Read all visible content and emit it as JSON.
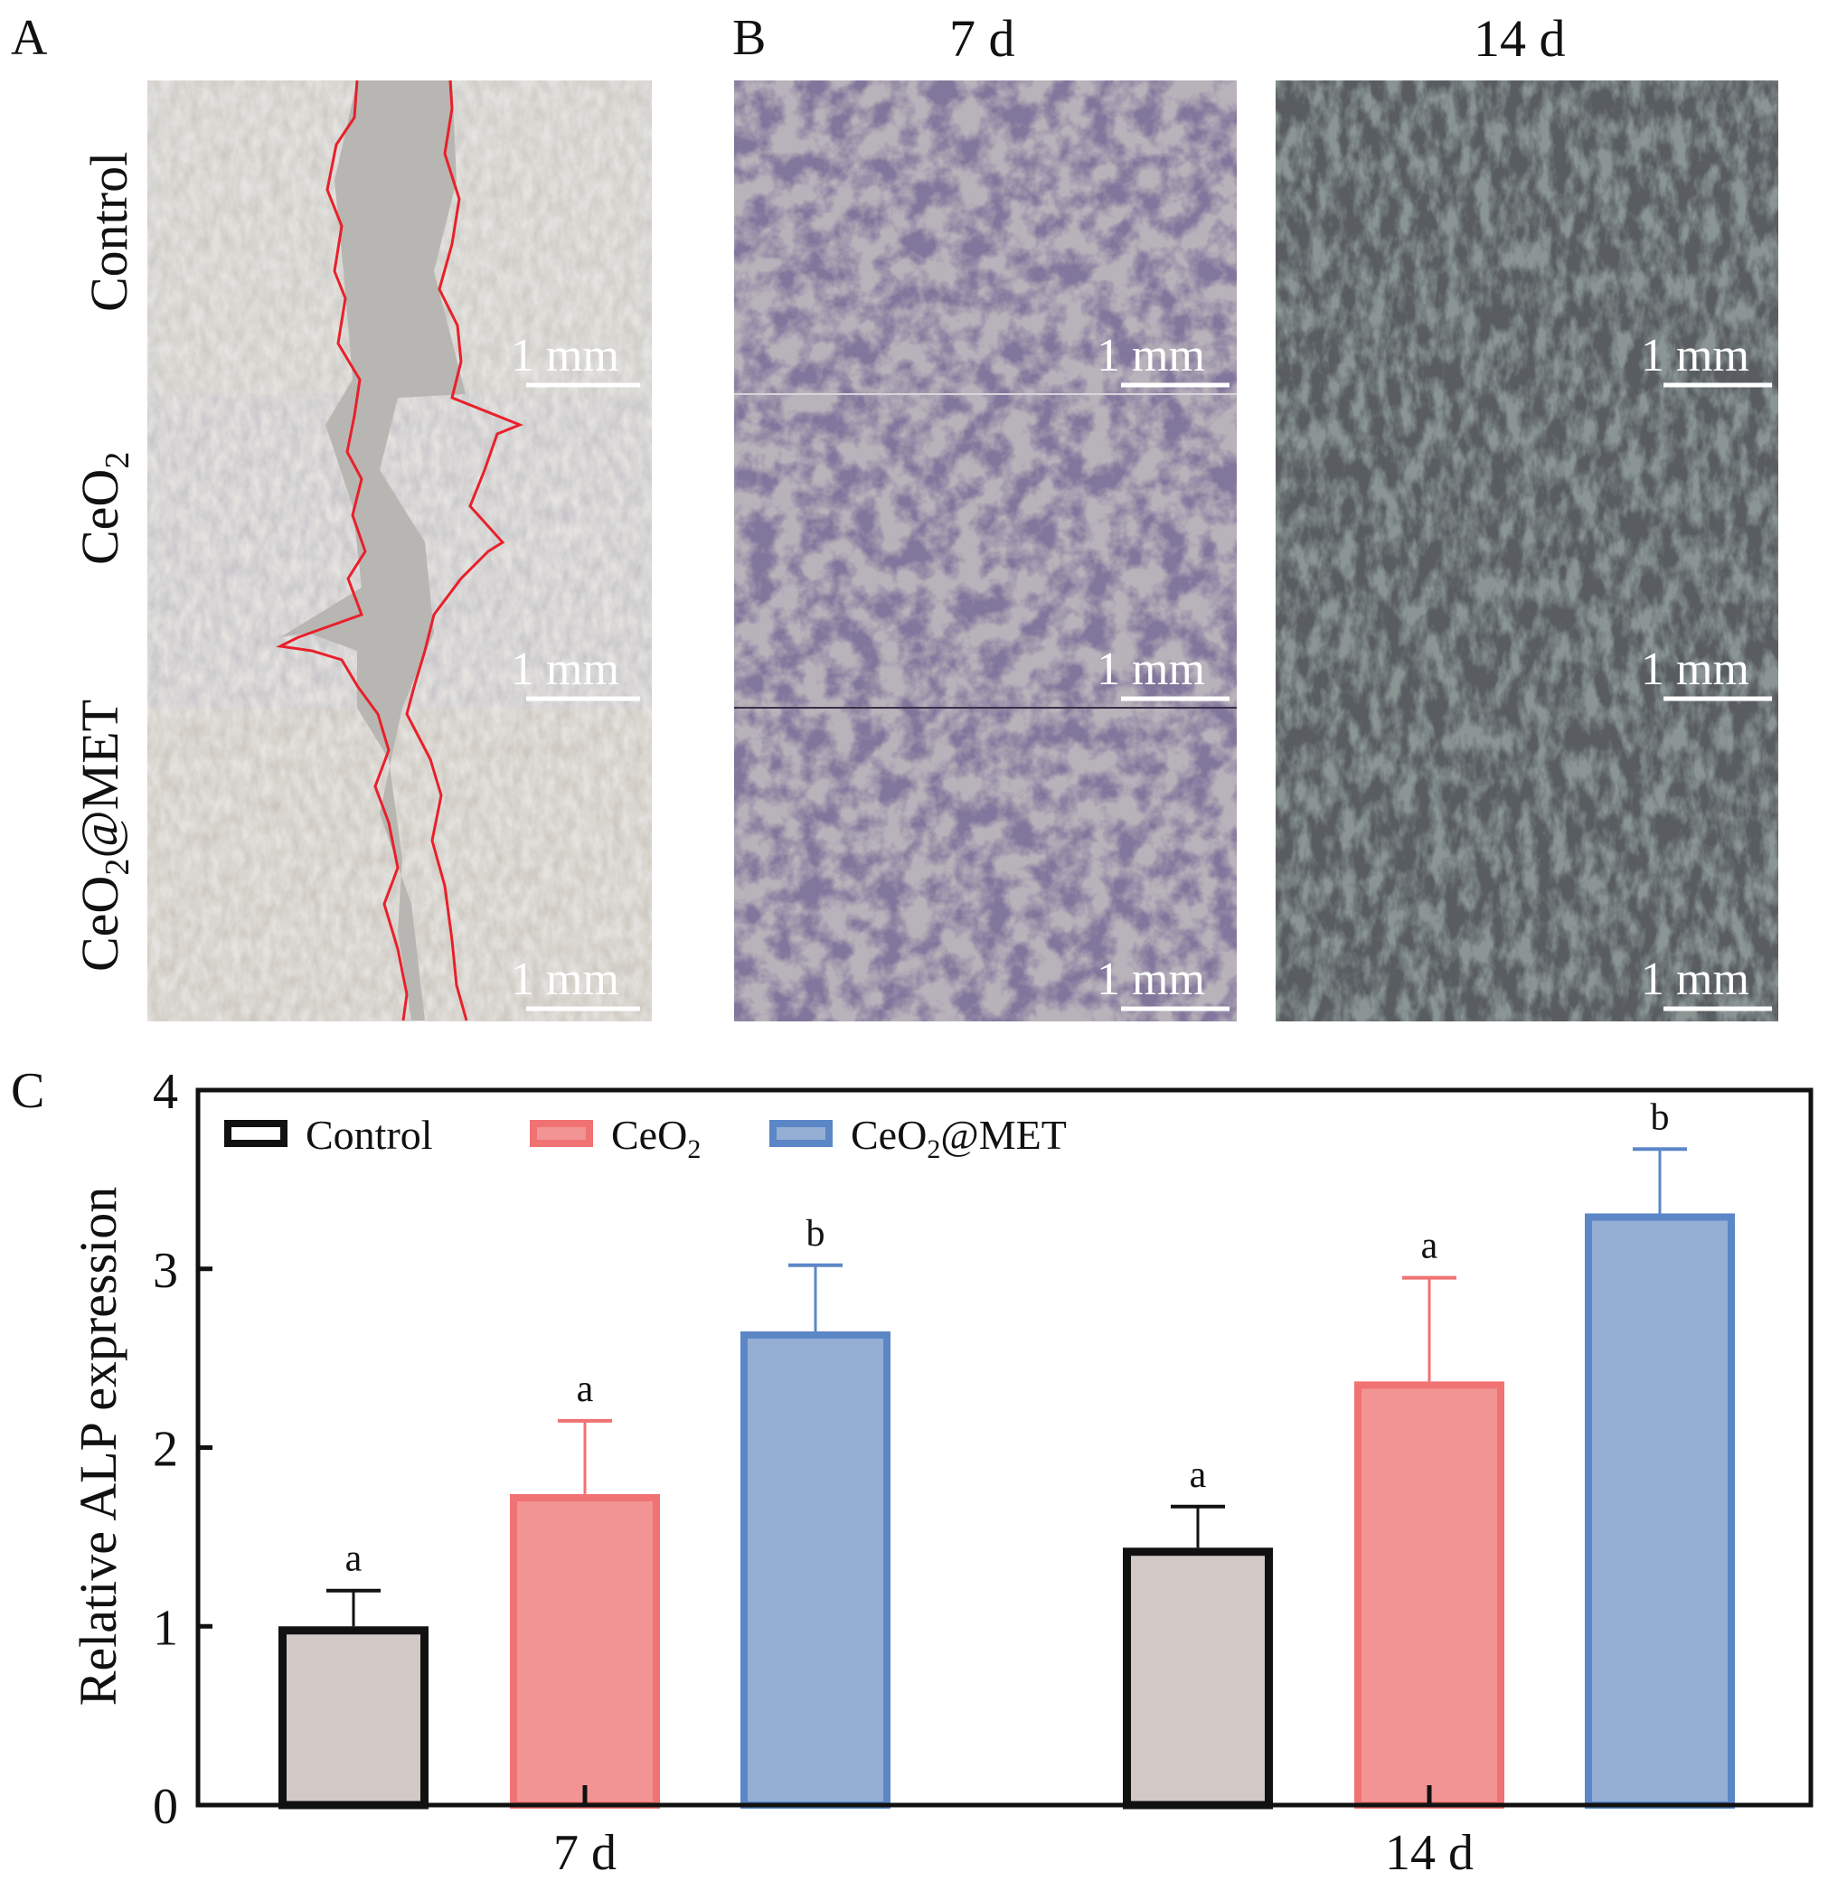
{
  "panels": {
    "a": "A",
    "b": "B",
    "c": "C"
  },
  "panel_a": {
    "rows": [
      {
        "main": "Control",
        "sub": "",
        "rest": ""
      },
      {
        "main": "CeO",
        "sub": "2",
        "rest": ""
      },
      {
        "main": "CeO",
        "sub": "2",
        "rest": "@MET"
      }
    ],
    "scale_bar": "1 mm"
  },
  "panel_b": {
    "columns": [
      "7 d",
      "14 d"
    ],
    "scale_bar": "1 mm"
  },
  "colors": {
    "control": "#d2c9c6",
    "ceo2": "#f29494",
    "ceo2_met": "#94aed4",
    "ceo2_edge": "#f07272",
    "met_edge": "#5b87c7",
    "wound_edge": "#e8202a"
  },
  "chart_data": {
    "type": "bar",
    "title": "",
    "xlabel": "",
    "ylabel": "Relative ALP expression",
    "ylim": [
      0,
      4
    ],
    "yticks": [
      "0",
      "1",
      "2",
      "3",
      "4"
    ],
    "categories": [
      "7 d",
      "14 d"
    ],
    "legend_position": "top-left",
    "series": [
      {
        "name": "Control",
        "name_main": "Control",
        "name_sub": "",
        "name_rest": "",
        "values": [
          1.0,
          1.44
        ],
        "errors_upper": [
          1.2,
          1.67
        ],
        "significance": [
          "a",
          "a"
        ]
      },
      {
        "name": "CeO2",
        "name_main": "CeO",
        "name_sub": "2",
        "name_rest": "",
        "values": [
          1.74,
          2.37
        ],
        "errors_upper": [
          2.15,
          2.95
        ],
        "significance": [
          "a",
          "a"
        ]
      },
      {
        "name": "CeO2@MET",
        "name_main": "CeO",
        "name_sub": "2",
        "name_rest": "@MET",
        "values": [
          2.65,
          3.31
        ],
        "errors_upper": [
          3.02,
          3.67
        ],
        "significance": [
          "b",
          "b"
        ]
      }
    ]
  }
}
